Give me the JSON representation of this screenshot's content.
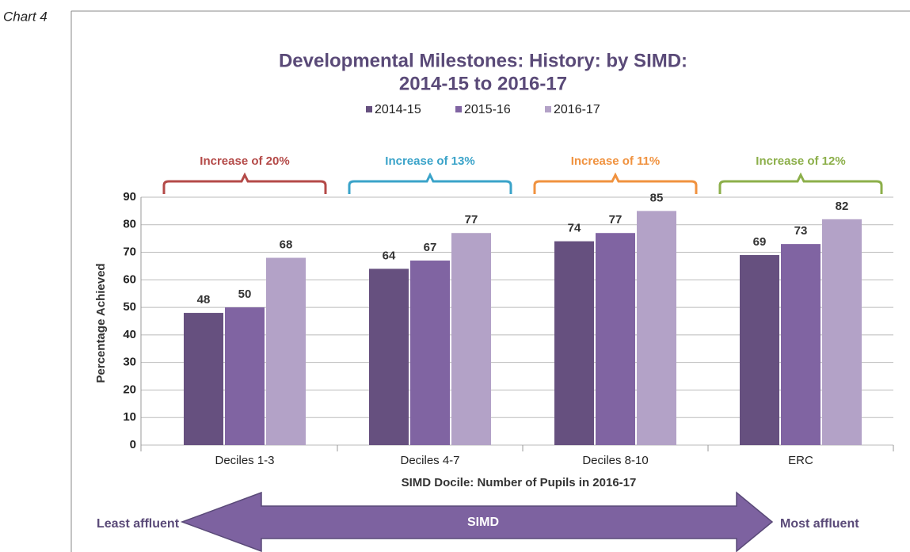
{
  "caption": "Chart 4",
  "chart_data": {
    "type": "bar",
    "title": [
      "Developmental Milestones: History: by SIMD:",
      "2014-15 to 2016-17"
    ],
    "categories": [
      "Deciles 1-3",
      "Deciles 4-7",
      "Deciles 8-10",
      "ERC"
    ],
    "series": [
      {
        "name": "2014-15",
        "color": "#66507f",
        "values": [
          48,
          64,
          74,
          69
        ]
      },
      {
        "name": "2015-16",
        "color": "#8064a2",
        "values": [
          50,
          67,
          77,
          73
        ]
      },
      {
        "name": "2016-17",
        "color": "#b3a2c7",
        "values": [
          68,
          77,
          85,
          82
        ]
      }
    ],
    "ylim": [
      0,
      90
    ],
    "yticks": [
      0,
      10,
      20,
      30,
      40,
      50,
      60,
      70,
      80,
      90
    ],
    "grid": true,
    "legend": "top",
    "ylabel": "Percentage Achieved",
    "xlabel": "SIMD Docile: Number of Pupils in 2016-17",
    "annotations": [
      {
        "text": "Increase of 20%",
        "color": "#b44a48"
      },
      {
        "text": "Increase of 13%",
        "color": "#3aa3c9"
      },
      {
        "text": "Increase of 11%",
        "color": "#f0923f"
      },
      {
        "text": "Increase of 12%",
        "color": "#8caf4a"
      }
    ],
    "arrow": {
      "left": "Least affluent",
      "center": "SIMD",
      "right": "Most affluent"
    }
  }
}
